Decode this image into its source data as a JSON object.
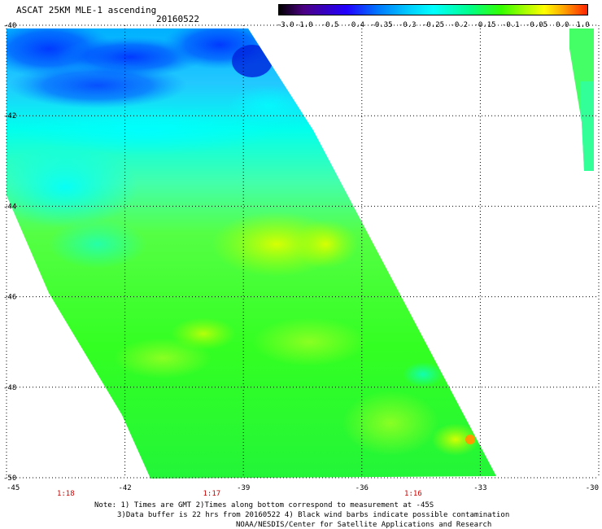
{
  "header": {
    "title": "ASCAT 25KM MLE-1 ascending",
    "date": "20160522"
  },
  "colorbar": {
    "labels": [
      "-3.0",
      "-1.0",
      "-0.5",
      "-0.4",
      "-0.35",
      "-0.3",
      "-0.25",
      "-0.2",
      "-0.15",
      "-0.1",
      "-0.05",
      "0.0",
      "1.0"
    ]
  },
  "map": {
    "lon_ticks": [
      {
        "value": -45,
        "label": "-45"
      },
      {
        "value": -42,
        "label": "-42"
      },
      {
        "value": -39,
        "label": "-39"
      },
      {
        "value": -36,
        "label": "-36"
      },
      {
        "value": -33,
        "label": "-33"
      },
      {
        "value": -30,
        "label": "-30"
      }
    ],
    "lat_ticks": [
      {
        "value": -40,
        "label": "-40"
      },
      {
        "value": -42,
        "label": "-42"
      },
      {
        "value": -44,
        "label": "-44"
      },
      {
        "value": -46,
        "label": "-46"
      },
      {
        "value": -48,
        "label": "-48"
      },
      {
        "value": -50,
        "label": "-50"
      }
    ],
    "times": [
      {
        "lon": -43.5,
        "label": "1:18"
      },
      {
        "lon": -39.8,
        "label": "1:17"
      },
      {
        "lon": -34.7,
        "label": "1:16"
      }
    ],
    "colors": {
      "blue": "#0033ff",
      "cyan": "#00ffff",
      "green": "#33ff33",
      "yellow": "#ffff00",
      "orange": "#ff9900"
    }
  },
  "footer": {
    "note_line1": "Note: 1) Times are GMT 2)Times along bottom correspond to measurement at -45S",
    "note_line2": "3)Data buffer is 22 hrs from 20160522 4) Black wind barbs indicate possible contamination",
    "note_line3": "NOAA/NESDIS/Center for Satellite Applications and Research"
  }
}
